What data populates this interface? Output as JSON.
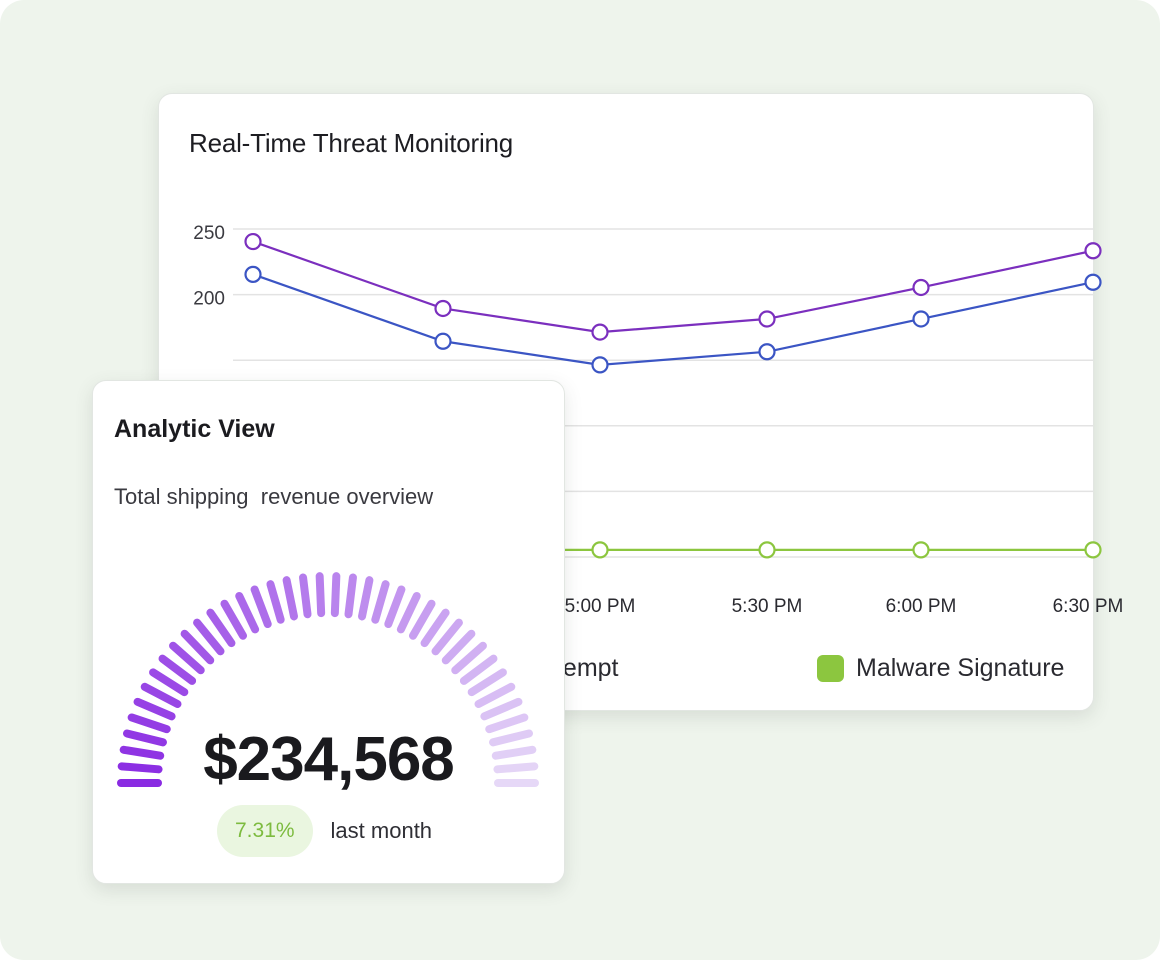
{
  "threat_panel": {
    "title": "Real-Time Threat Monitoring",
    "chart_data": {
      "type": "line",
      "y_tick_labels": [
        "250",
        "200"
      ],
      "x_tick_labels": [
        "5:00 PM",
        "5:30 PM",
        "6:00 PM",
        "6:30 PM"
      ],
      "x": [
        "",
        "",
        "5:00 PM",
        "5:30 PM",
        "6:00 PM",
        "6:30 PM"
      ],
      "ylim": [
        0,
        250
      ],
      "grid": true,
      "series": [
        {
          "name": "",
          "color": "#7b2fbe",
          "values": [
            245,
            194,
            176,
            186,
            210,
            238
          ]
        },
        {
          "name": "",
          "color": "#3b55c4",
          "values": [
            220,
            169,
            151,
            161,
            186,
            214
          ]
        },
        {
          "name": "Malware Signature",
          "color": "#8cc63f",
          "values": [
            null,
            null,
            10,
            10,
            10,
            10
          ]
        }
      ]
    },
    "legend": [
      {
        "label": "Port Scan Attempt",
        "color": "#3b55c4"
      },
      {
        "label": "Malware Signature",
        "color": "#8cc63f"
      }
    ]
  },
  "analytic_panel": {
    "title": "Analytic View",
    "subtitle": "Total shipping  revenue overview",
    "amount": "$234,568",
    "change": "7.31%",
    "period": "last month",
    "gauge": {
      "segments": 40,
      "start_color": "#8a2be2",
      "end_color": "#e6d8f7"
    },
    "colors": {
      "badge_bg": "#eaf6e0",
      "badge_text": "#7dbb3f"
    }
  }
}
